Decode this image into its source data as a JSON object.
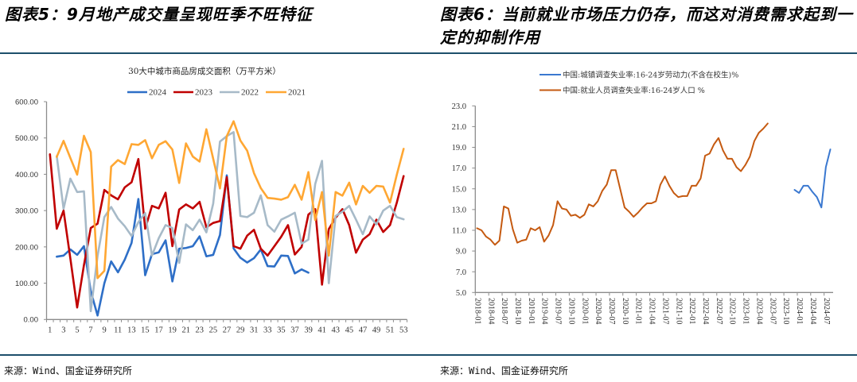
{
  "left_panel": {
    "figure_title": "图表5：9月地产成交量呈现旺季不旺特征",
    "source": "来源：Wind、国金证券研究所"
  },
  "right_panel": {
    "figure_title_line1": "图表6：当前就业市场压力仍存，而这对消费需求起到一",
    "figure_title_line2": "定的抑制作用",
    "source": "来源：Wind、国金证券研究所"
  },
  "chart_data": [
    {
      "type": "line",
      "title": "30大中城市商品房成交面积（万平方米）",
      "xlabel": "",
      "ylabel": "",
      "x": [
        1,
        2,
        3,
        4,
        5,
        6,
        7,
        8,
        9,
        10,
        11,
        12,
        13,
        14,
        15,
        16,
        17,
        18,
        19,
        20,
        21,
        22,
        23,
        24,
        25,
        26,
        27,
        28,
        29,
        30,
        31,
        32,
        33,
        34,
        35,
        36,
        37,
        38,
        39,
        40,
        41,
        42,
        43,
        44,
        45,
        46,
        47,
        48,
        49,
        50,
        51,
        52,
        53
      ],
      "x_tick_labels": [
        "1",
        "3",
        "5",
        "7",
        "9",
        "11",
        "13",
        "15",
        "17",
        "19",
        "21",
        "23",
        "25",
        "27",
        "29",
        "31",
        "33",
        "35",
        "37",
        "39",
        "41",
        "43",
        "45",
        "47",
        "49",
        "51",
        "53"
      ],
      "ylim": [
        0,
        600
      ],
      "y_ticks": [
        0,
        100,
        200,
        300,
        400,
        500,
        600
      ],
      "y_tick_labels": [
        "0.00",
        "100.00",
        "200.00",
        "300.00",
        "400.00",
        "500.00",
        "600.00"
      ],
      "grid": false,
      "legend_position": "top-center",
      "series": [
        {
          "name": "2024",
          "color": "#2e6fc7",
          "values": [
            null,
            173,
            176,
            193,
            178,
            202,
            78,
            11,
            100,
            160,
            130,
            165,
            211,
            332,
            122,
            180,
            185,
            218,
            105,
            195,
            197,
            202,
            229,
            174,
            178,
            233,
            397,
            196,
            170,
            157,
            169,
            193,
            147,
            146,
            176,
            175,
            127,
            138,
            129,
            null,
            null,
            null,
            null,
            null,
            null,
            null,
            null,
            null,
            null,
            null,
            null,
            null,
            null
          ]
        },
        {
          "name": "2023",
          "color": "#c00000",
          "values": [
            455,
            250,
            300,
            168,
            33,
            150,
            252,
            264,
            357,
            342,
            331,
            364,
            378,
            442,
            250,
            313,
            306,
            349,
            202,
            303,
            317,
            306,
            324,
            254,
            266,
            271,
            392,
            202,
            195,
            231,
            247,
            195,
            176,
            202,
            228,
            260,
            179,
            200,
            289,
            304,
            96,
            249,
            280,
            304,
            260,
            184,
            220,
            235,
            275,
            241,
            260,
            322,
            395
          ]
        },
        {
          "name": "2022",
          "color": "#a7bac8",
          "values": [
            null,
            450,
            305,
            388,
            351,
            353,
            23,
            175,
            282,
            310,
            278,
            257,
            230,
            268,
            293,
            176,
            224,
            260,
            252,
            156,
            262,
            246,
            275,
            240,
            319,
            490,
            505,
            516,
            285,
            282,
            294,
            342,
            260,
            242,
            275,
            284,
            294,
            209,
            220,
            373,
            437,
            100,
            285,
            297,
            313,
            275,
            235,
            284,
            262,
            300,
            313,
            282,
            276
          ]
        },
        {
          "name": "2021",
          "color": "#ffa733",
          "values": [
            null,
            448,
            492,
            445,
            399,
            506,
            461,
            114,
            134,
            421,
            439,
            428,
            483,
            481,
            494,
            444,
            481,
            491,
            468,
            376,
            485,
            449,
            435,
            524,
            443,
            361,
            505,
            546,
            493,
            465,
            403,
            362,
            335,
            333,
            330,
            337,
            371,
            330,
            406,
            274,
            351,
            176,
            351,
            341,
            377,
            317,
            368,
            349,
            368,
            366,
            322,
            399,
            470
          ]
        }
      ]
    },
    {
      "type": "line",
      "title": "",
      "xlabel": "",
      "ylabel": "",
      "x": [
        "2018-01",
        "2018-02",
        "2018-03",
        "2018-04",
        "2018-05",
        "2018-06",
        "2018-07",
        "2018-08",
        "2018-09",
        "2018-10",
        "2018-11",
        "2018-12",
        "2019-01",
        "2019-02",
        "2019-03",
        "2019-04",
        "2019-05",
        "2019-06",
        "2019-07",
        "2019-08",
        "2019-09",
        "2019-10",
        "2019-11",
        "2019-12",
        "2020-01",
        "2020-02",
        "2020-03",
        "2020-04",
        "2020-05",
        "2020-06",
        "2020-07",
        "2020-08",
        "2020-09",
        "2020-10",
        "2020-11",
        "2020-12",
        "2021-01",
        "2021-02",
        "2021-03",
        "2021-04",
        "2021-05",
        "2021-06",
        "2021-07",
        "2021-08",
        "2021-09",
        "2021-10",
        "2021-11",
        "2021-12",
        "2022-01",
        "2022-02",
        "2022-03",
        "2022-04",
        "2022-05",
        "2022-06",
        "2022-07",
        "2022-08",
        "2022-09",
        "2022-10",
        "2022-11",
        "2022-12",
        "2023-01",
        "2023-02",
        "2023-03",
        "2023-04",
        "2023-05",
        "2023-06",
        "2023-07",
        "2023-08",
        "2023-09",
        "2023-10",
        "2023-11",
        "2023-12",
        "2024-01",
        "2024-02",
        "2024-03",
        "2024-04",
        "2024-05",
        "2024-06",
        "2024-07",
        "2024-08"
      ],
      "x_tick_labels": [
        "2018-01",
        "2018-04",
        "2018-07",
        "2018-10",
        "2019-01",
        "2019-04",
        "2019-07",
        "2019-10",
        "2020-01",
        "2020-04",
        "2020-07",
        "2020-10",
        "2021-01",
        "2021-04",
        "2021-07",
        "2021-10",
        "2022-01",
        "2022-04",
        "2022-07",
        "2022-10",
        "2023-01",
        "2023-04",
        "2023-07",
        "2023-10",
        "2024-01",
        "2024-04",
        "2024-07"
      ],
      "ylim": [
        5,
        23
      ],
      "y_ticks": [
        5,
        7,
        9,
        11,
        13,
        15,
        17,
        19,
        21,
        23
      ],
      "y_tick_labels": [
        "5.0",
        "7.0",
        "9.0",
        "11.0",
        "13.0",
        "15.0",
        "17.0",
        "19.0",
        "21.0",
        "23.0"
      ],
      "grid": false,
      "legend_position": "top-center",
      "series": [
        {
          "name": "中国:城镇调查失业率:16-24岁劳动力(不含在校生)%",
          "color": "#3a78d0",
          "values": [
            null,
            null,
            null,
            null,
            null,
            null,
            null,
            null,
            null,
            null,
            null,
            null,
            null,
            null,
            null,
            null,
            null,
            null,
            null,
            null,
            null,
            null,
            null,
            null,
            null,
            null,
            null,
            null,
            null,
            null,
            null,
            null,
            null,
            null,
            null,
            null,
            null,
            null,
            null,
            null,
            null,
            null,
            null,
            null,
            null,
            null,
            null,
            null,
            null,
            null,
            null,
            null,
            null,
            null,
            null,
            null,
            null,
            null,
            null,
            null,
            null,
            null,
            null,
            null,
            null,
            null,
            null,
            null,
            null,
            null,
            null,
            14.9,
            14.6,
            15.3,
            15.3,
            14.7,
            14.2,
            13.2,
            17.1,
            18.8
          ]
        },
        {
          "name": "中国:就业人员调查失业率:16-24岁人口 %",
          "color": "#c55a11",
          "values": [
            11.2,
            11.0,
            10.4,
            10.1,
            9.6,
            10.0,
            13.3,
            13.1,
            11.1,
            9.8,
            10.0,
            10.1,
            11.2,
            11.0,
            11.3,
            9.9,
            10.5,
            11.5,
            13.8,
            13.1,
            13.0,
            12.4,
            12.5,
            12.2,
            12.5,
            13.5,
            13.3,
            13.8,
            14.8,
            15.4,
            16.8,
            16.8,
            15.0,
            13.2,
            12.8,
            12.3,
            12.7,
            13.2,
            13.6,
            13.6,
            13.8,
            15.4,
            16.2,
            15.3,
            14.6,
            14.2,
            14.3,
            14.3,
            15.3,
            15.3,
            16.0,
            18.2,
            18.4,
            19.3,
            19.9,
            18.7,
            17.9,
            17.9,
            17.1,
            16.7,
            17.3,
            18.1,
            19.6,
            20.4,
            20.8,
            21.3,
            null,
            null,
            null,
            null,
            null,
            null,
            null,
            null,
            null,
            null,
            null,
            null,
            null,
            null
          ]
        }
      ]
    }
  ]
}
